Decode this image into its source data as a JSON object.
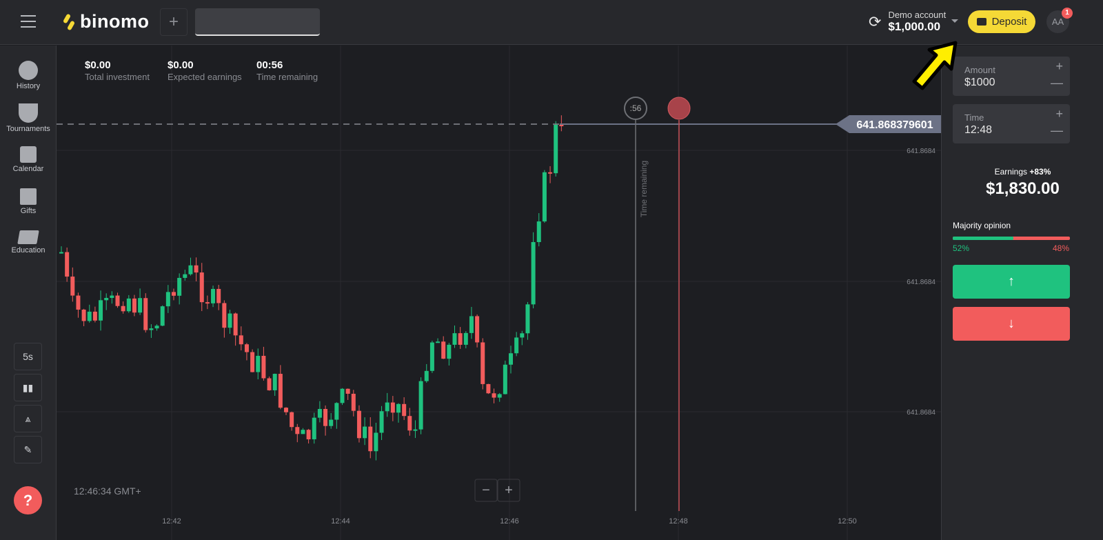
{
  "header": {
    "logo": "binomo",
    "add_tab": "+",
    "account_label": "Demo account",
    "balance": "$1,000.00",
    "deposit_label": "Deposit",
    "avatar": "AA",
    "notifications": "1"
  },
  "sidebar": {
    "items": [
      {
        "label": "History",
        "icon": "clock-icon"
      },
      {
        "label": "Tournaments",
        "icon": "trophy-icon"
      },
      {
        "label": "Calendar",
        "icon": "calendar-icon"
      },
      {
        "label": "Gifts",
        "icon": "gift-icon"
      },
      {
        "label": "Education",
        "icon": "graduation-cap-icon"
      }
    ],
    "tools": {
      "timeframe": "5s"
    },
    "help": "?"
  },
  "stats": [
    {
      "value": "$0.00",
      "label": "Total investment"
    },
    {
      "value": "$0.00",
      "label": "Expected earnings"
    },
    {
      "value": "00:56",
      "label": "Time remaining"
    }
  ],
  "chart": {
    "current_price": "641.868379601",
    "price_ticks": [
      "641.8684",
      "641.8684",
      "641.8684"
    ],
    "time_ticks": [
      "12:42",
      "12:44",
      "12:46",
      "12:48",
      "12:50"
    ],
    "countdown": ":56",
    "time_remaining_label": "Time remaining",
    "clock": "12:46:34 GMT+",
    "zoom_out": "−",
    "zoom_in": "+",
    "colors": {
      "up": "#1fc27f",
      "down": "#f25c5c"
    }
  },
  "panel": {
    "amount_label": "Amount",
    "amount": "$1000",
    "time_label": "Time",
    "time": "12:48",
    "earnings_label": "Earnings",
    "earnings_pct": "+83%",
    "earnings": "$1,830.00",
    "majority_label": "Majority opinion",
    "up_pct": "52%",
    "down_pct": "48%",
    "majority_up_fraction": 0.52,
    "up_icon": "↑",
    "down_icon": "↓"
  }
}
